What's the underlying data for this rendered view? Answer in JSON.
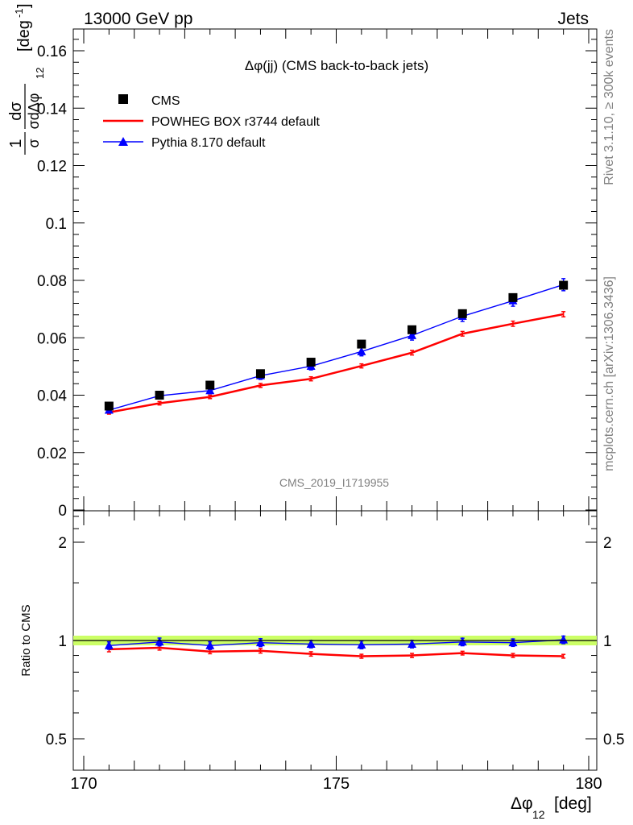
{
  "header": {
    "energy": "13000 GeV pp",
    "category": "Jets"
  },
  "side": {
    "rivet": "Rivet 3.1.10, ≥ 300k events",
    "mcplots": "mcplots.cern.ch [arXiv:1306.3436]"
  },
  "top_panel": {
    "title": "Δφ(jj) (CMS back-to-back jets)",
    "analysis": "CMS_2019_I1719955",
    "ylabel_main": "1",
    "ylabel_num": "dσ",
    "ylabel_den": "σdΔφ",
    "ylabel_den_sub": "12",
    "ylabel_unit": "[deg",
    "ylabel_unit_sup": "-1",
    "ylabel_unit_close": "]",
    "yticks": [
      "0",
      "0.02",
      "0.04",
      "0.06",
      "0.08",
      "0.1",
      "0.12",
      "0.14",
      "0.16"
    ]
  },
  "ratio_panel": {
    "ylabel": "Ratio to CMS",
    "yticks": [
      "0.5",
      "1",
      "2"
    ]
  },
  "x_axis": {
    "label": "Δφ",
    "label_sub": "12",
    "unit": "[deg]",
    "ticks": [
      "170",
      "175",
      "180"
    ]
  },
  "chart_data": {
    "type": "line",
    "x_edges": [
      170,
      180
    ],
    "x": [
      170.5,
      171.5,
      172.5,
      173.5,
      174.5,
      175.5,
      176.5,
      177.5,
      178.5,
      179.5
    ],
    "ylim": [
      0,
      0.168
    ],
    "ratio_ylim": [
      0.4,
      2.4
    ],
    "ratio_log": true,
    "series": [
      {
        "name": "CMS",
        "color": "#000000",
        "marker": "square",
        "values": [
          0.0362,
          0.04,
          0.0435,
          0.0475,
          0.0515,
          0.0578,
          0.0628,
          0.0684,
          0.074,
          0.0783
        ],
        "errors": [
          0.0006,
          0.0006,
          0.0006,
          0.0007,
          0.0008,
          0.0008,
          0.0009,
          0.001,
          0.001,
          0.0012
        ],
        "ratio": [
          1.0,
          1.0,
          1.0,
          1.0,
          1.0,
          1.0,
          1.0,
          1.0,
          1.0,
          1.0
        ]
      },
      {
        "name": "POWHEG BOX r3744 default",
        "color": "#ff0000",
        "marker": "none",
        "values": [
          0.034,
          0.0372,
          0.0394,
          0.0434,
          0.0457,
          0.0502,
          0.0548,
          0.0614,
          0.0649,
          0.0682
        ],
        "errors": [
          0.0006,
          0.0006,
          0.0006,
          0.0007,
          0.0007,
          0.0007,
          0.0008,
          0.0008,
          0.0009,
          0.0009
        ],
        "ratio": [
          0.94,
          0.95,
          0.925,
          0.93,
          0.91,
          0.895,
          0.9,
          0.915,
          0.9,
          0.895
        ]
      },
      {
        "name": "Pythia 8.170 default",
        "color": "#0000ff",
        "marker": "triangle",
        "values": [
          0.0348,
          0.0398,
          0.0416,
          0.0468,
          0.0501,
          0.0552,
          0.0608,
          0.0675,
          0.0729,
          0.0785
        ],
        "errors": [
          0.0009,
          0.0011,
          0.0011,
          0.0013,
          0.0013,
          0.0015,
          0.0016,
          0.0018,
          0.0019,
          0.0021
        ],
        "ratio": [
          0.965,
          0.99,
          0.965,
          0.985,
          0.975,
          0.97,
          0.975,
          0.99,
          0.985,
          1.005
        ]
      }
    ],
    "ratio_band_color": "#ccff66"
  }
}
